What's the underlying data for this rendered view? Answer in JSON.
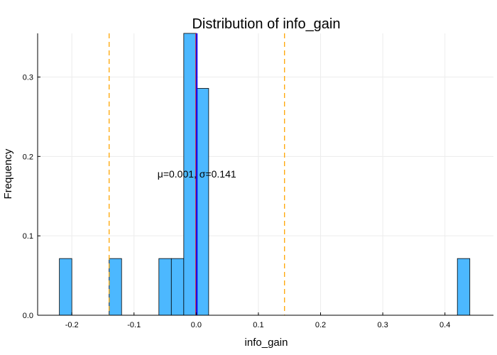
{
  "chart_data": {
    "type": "bar",
    "title": "Distribution of info_gain",
    "xlabel": "info_gain",
    "ylabel": "Frequency",
    "xlim": [
      -0.255,
      0.478
    ],
    "ylim": [
      0,
      0.355
    ],
    "x_ticks": [
      -0.2,
      -0.1,
      0.0,
      0.1,
      0.2,
      0.3,
      0.4
    ],
    "x_tick_labels": [
      "-0.2",
      "-0.1",
      "0.0",
      "0.1",
      "0.2",
      "0.3",
      "0.4"
    ],
    "y_ticks": [
      0.0,
      0.1,
      0.2,
      0.3
    ],
    "y_tick_labels": [
      "0.0",
      "0.1",
      "0.2",
      "0.3"
    ],
    "grid": true,
    "bin_width": 0.02,
    "bins": [
      {
        "x0": -0.22,
        "x1": -0.2,
        "value": 0.0714
      },
      {
        "x0": -0.2,
        "x1": -0.18,
        "value": 0
      },
      {
        "x0": -0.18,
        "x1": -0.16,
        "value": 0
      },
      {
        "x0": -0.16,
        "x1": -0.14,
        "value": 0
      },
      {
        "x0": -0.14,
        "x1": -0.12,
        "value": 0.0714
      },
      {
        "x0": -0.12,
        "x1": -0.1,
        "value": 0
      },
      {
        "x0": -0.1,
        "x1": -0.08,
        "value": 0
      },
      {
        "x0": -0.08,
        "x1": -0.06,
        "value": 0
      },
      {
        "x0": -0.06,
        "x1": -0.04,
        "value": 0.0714
      },
      {
        "x0": -0.04,
        "x1": -0.02,
        "value": 0.0714
      },
      {
        "x0": -0.02,
        "x1": 0.0,
        "value": 0.357
      },
      {
        "x0": 0.0,
        "x1": 0.02,
        "value": 0.2857
      },
      {
        "x0": 0.42,
        "x1": 0.44,
        "value": 0.0714
      }
    ],
    "baseline_segment": [
      -0.22,
      0.44
    ],
    "vlines": [
      {
        "kind": "zero",
        "x": 0.0,
        "color": "#ff0000"
      },
      {
        "kind": "mean",
        "x": 0.001,
        "color": "#0000ff"
      },
      {
        "kind": "minus_std",
        "x": -0.14,
        "color": "#ffa500",
        "dashed": true
      },
      {
        "kind": "plus_std",
        "x": 0.142,
        "color": "#ffa500",
        "dashed": true
      }
    ],
    "annotation": {
      "text": "μ=0.001, σ=0.141",
      "x": 0.001,
      "y": 0.178
    },
    "colors": {
      "bar_fill": "#4cb8ff",
      "bar_stroke": "#000000",
      "grid": "#ececec"
    }
  }
}
